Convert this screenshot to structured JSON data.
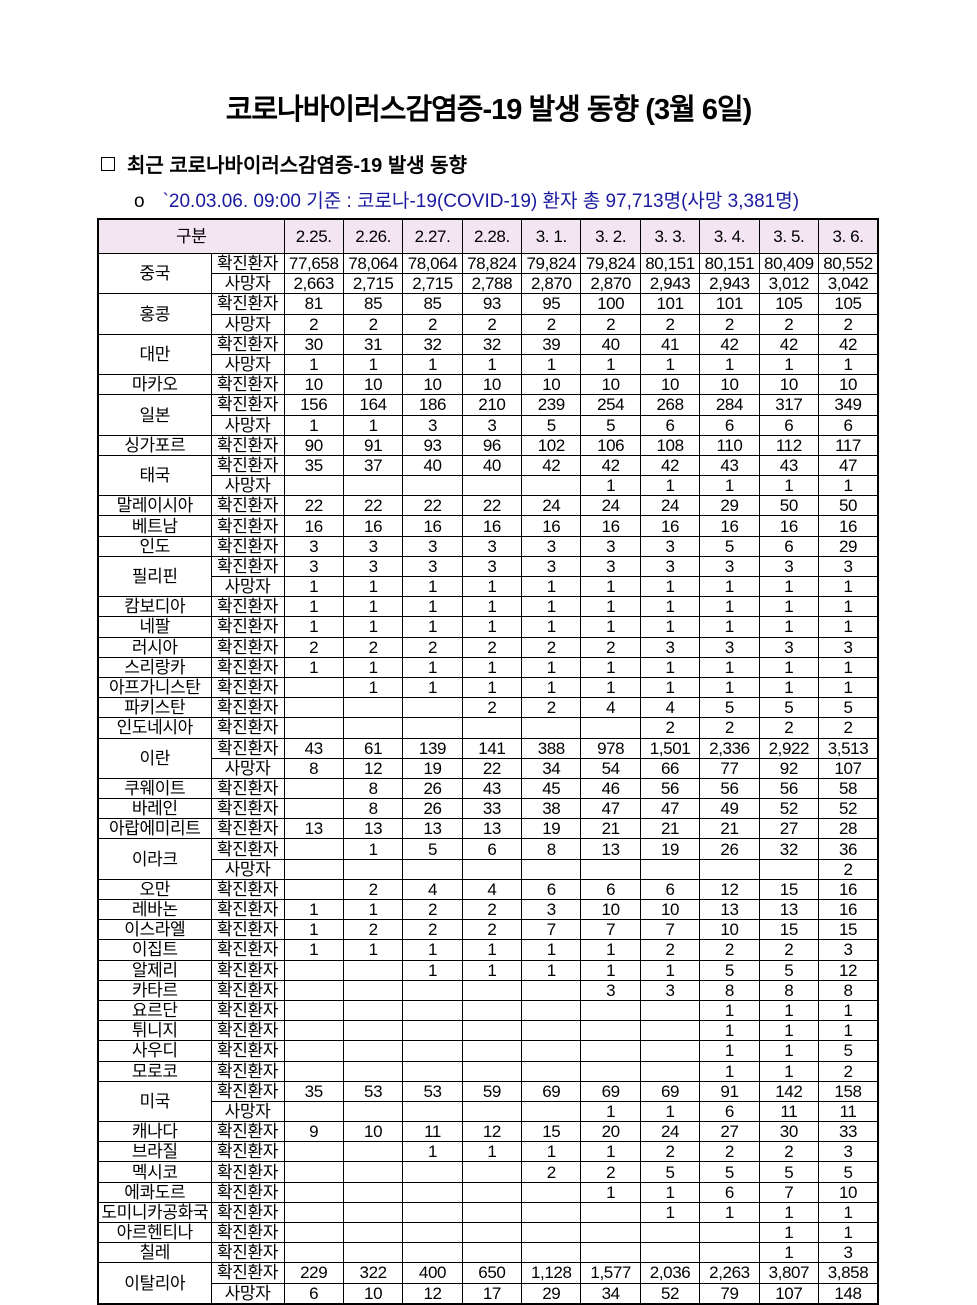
{
  "title": "코로나바이러스감염증-19 발생 동향 (3월 6일)",
  "section_heading": "최근 코로나바이러스감염증-19 발생 동향",
  "basis_bullet": "o",
  "basis_text": "`20.03.06. 09:00 기준 : 코로나-19(COVID-19) 환자  총 97,713명(사망 3,381명)",
  "table": {
    "header_label": "구분",
    "dates": [
      "2.25.",
      "2.26.",
      "2.27.",
      "2.28.",
      "3. 1.",
      "3. 2.",
      "3. 3.",
      "3. 4.",
      "3. 5.",
      "3. 6."
    ],
    "countries": [
      {
        "name": "중국",
        "rows": [
          {
            "type": "확진환자",
            "values": [
              "77,658",
              "78,064",
              "78,064",
              "78,824",
              "79,824",
              "79,824",
              "80,151",
              "80,151",
              "80,409",
              "80,552"
            ]
          },
          {
            "type": "사망자",
            "values": [
              "2,663",
              "2,715",
              "2,715",
              "2,788",
              "2,870",
              "2,870",
              "2,943",
              "2,943",
              "3,012",
              "3,042"
            ]
          }
        ]
      },
      {
        "name": "홍콩",
        "rows": [
          {
            "type": "확진환자",
            "values": [
              "81",
              "85",
              "85",
              "93",
              "95",
              "100",
              "101",
              "101",
              "105",
              "105"
            ]
          },
          {
            "type": "사망자",
            "values": [
              "2",
              "2",
              "2",
              "2",
              "2",
              "2",
              "2",
              "2",
              "2",
              "2"
            ]
          }
        ]
      },
      {
        "name": "대만",
        "rows": [
          {
            "type": "확진환자",
            "values": [
              "30",
              "31",
              "32",
              "32",
              "39",
              "40",
              "41",
              "42",
              "42",
              "42"
            ]
          },
          {
            "type": "사망자",
            "values": [
              "1",
              "1",
              "1",
              "1",
              "1",
              "1",
              "1",
              "1",
              "1",
              "1"
            ]
          }
        ]
      },
      {
        "name": "마카오",
        "rows": [
          {
            "type": "확진환자",
            "values": [
              "10",
              "10",
              "10",
              "10",
              "10",
              "10",
              "10",
              "10",
              "10",
              "10"
            ]
          }
        ]
      },
      {
        "name": "일본",
        "rows": [
          {
            "type": "확진환자",
            "values": [
              "156",
              "164",
              "186",
              "210",
              "239",
              "254",
              "268",
              "284",
              "317",
              "349"
            ]
          },
          {
            "type": "사망자",
            "values": [
              "1",
              "1",
              "3",
              "3",
              "5",
              "5",
              "6",
              "6",
              "6",
              "6"
            ]
          }
        ]
      },
      {
        "name": "싱가포르",
        "rows": [
          {
            "type": "확진환자",
            "values": [
              "90",
              "91",
              "93",
              "96",
              "102",
              "106",
              "108",
              "110",
              "112",
              "117"
            ]
          }
        ]
      },
      {
        "name": "태국",
        "rows": [
          {
            "type": "확진환자",
            "values": [
              "35",
              "37",
              "40",
              "40",
              "42",
              "42",
              "42",
              "43",
              "43",
              "47"
            ]
          },
          {
            "type": "사망자",
            "values": [
              "",
              "",
              "",
              "",
              "",
              "1",
              "1",
              "1",
              "1",
              "1"
            ]
          }
        ]
      },
      {
        "name": "말레이시아",
        "rows": [
          {
            "type": "확진환자",
            "values": [
              "22",
              "22",
              "22",
              "22",
              "24",
              "24",
              "24",
              "29",
              "50",
              "50"
            ]
          }
        ]
      },
      {
        "name": "베트남",
        "rows": [
          {
            "type": "확진환자",
            "values": [
              "16",
              "16",
              "16",
              "16",
              "16",
              "16",
              "16",
              "16",
              "16",
              "16"
            ]
          }
        ]
      },
      {
        "name": "인도",
        "rows": [
          {
            "type": "확진환자",
            "values": [
              "3",
              "3",
              "3",
              "3",
              "3",
              "3",
              "3",
              "5",
              "6",
              "29"
            ]
          }
        ]
      },
      {
        "name": "필리핀",
        "rows": [
          {
            "type": "확진환자",
            "values": [
              "3",
              "3",
              "3",
              "3",
              "3",
              "3",
              "3",
              "3",
              "3",
              "3"
            ]
          },
          {
            "type": "사망자",
            "values": [
              "1",
              "1",
              "1",
              "1",
              "1",
              "1",
              "1",
              "1",
              "1",
              "1"
            ]
          }
        ]
      },
      {
        "name": "캄보디아",
        "rows": [
          {
            "type": "확진환자",
            "values": [
              "1",
              "1",
              "1",
              "1",
              "1",
              "1",
              "1",
              "1",
              "1",
              "1"
            ]
          }
        ]
      },
      {
        "name": "네팔",
        "rows": [
          {
            "type": "확진환자",
            "values": [
              "1",
              "1",
              "1",
              "1",
              "1",
              "1",
              "1",
              "1",
              "1",
              "1"
            ]
          }
        ]
      },
      {
        "name": "러시아",
        "rows": [
          {
            "type": "확진환자",
            "values": [
              "2",
              "2",
              "2",
              "2",
              "2",
              "2",
              "3",
              "3",
              "3",
              "3"
            ]
          }
        ]
      },
      {
        "name": "스리랑카",
        "rows": [
          {
            "type": "확진환자",
            "values": [
              "1",
              "1",
              "1",
              "1",
              "1",
              "1",
              "1",
              "1",
              "1",
              "1"
            ]
          }
        ]
      },
      {
        "name": "아프가니스탄",
        "rows": [
          {
            "type": "확진환자",
            "values": [
              "",
              "1",
              "1",
              "1",
              "1",
              "1",
              "1",
              "1",
              "1",
              "1"
            ]
          }
        ]
      },
      {
        "name": "파키스탄",
        "rows": [
          {
            "type": "확진환자",
            "values": [
              "",
              "",
              "",
              "2",
              "2",
              "4",
              "4",
              "5",
              "5",
              "5"
            ]
          }
        ]
      },
      {
        "name": "인도네시아",
        "rows": [
          {
            "type": "확진환자",
            "values": [
              "",
              "",
              "",
              "",
              "",
              "",
              "2",
              "2",
              "2",
              "2"
            ]
          }
        ]
      },
      {
        "name": "이란",
        "rows": [
          {
            "type": "확진환자",
            "values": [
              "43",
              "61",
              "139",
              "141",
              "388",
              "978",
              "1,501",
              "2,336",
              "2,922",
              "3,513"
            ]
          },
          {
            "type": "사망자",
            "values": [
              "8",
              "12",
              "19",
              "22",
              "34",
              "54",
              "66",
              "77",
              "92",
              "107"
            ]
          }
        ]
      },
      {
        "name": "쿠웨이트",
        "rows": [
          {
            "type": "확진환자",
            "values": [
              "",
              "8",
              "26",
              "43",
              "45",
              "46",
              "56",
              "56",
              "56",
              "58"
            ]
          }
        ]
      },
      {
        "name": "바레인",
        "rows": [
          {
            "type": "확진환자",
            "values": [
              "",
              "8",
              "26",
              "33",
              "38",
              "47",
              "47",
              "49",
              "52",
              "52"
            ]
          }
        ]
      },
      {
        "name": "아랍에미리트",
        "rows": [
          {
            "type": "확진환자",
            "values": [
              "13",
              "13",
              "13",
              "13",
              "19",
              "21",
              "21",
              "21",
              "27",
              "28"
            ]
          }
        ]
      },
      {
        "name": "이라크",
        "rows": [
          {
            "type": "확진환자",
            "values": [
              "",
              "1",
              "5",
              "6",
              "8",
              "13",
              "19",
              "26",
              "32",
              "36"
            ]
          },
          {
            "type": "사망자",
            "values": [
              "",
              "",
              "",
              "",
              "",
              "",
              "",
              "",
              "",
              "2"
            ]
          }
        ]
      },
      {
        "name": "오만",
        "rows": [
          {
            "type": "확진환자",
            "values": [
              "",
              "2",
              "4",
              "4",
              "6",
              "6",
              "6",
              "12",
              "15",
              "16"
            ]
          }
        ]
      },
      {
        "name": "레바논",
        "rows": [
          {
            "type": "확진환자",
            "values": [
              "1",
              "1",
              "2",
              "2",
              "3",
              "10",
              "10",
              "13",
              "13",
              "16"
            ]
          }
        ]
      },
      {
        "name": "이스라엘",
        "rows": [
          {
            "type": "확진환자",
            "values": [
              "1",
              "2",
              "2",
              "2",
              "7",
              "7",
              "7",
              "10",
              "15",
              "15"
            ]
          }
        ]
      },
      {
        "name": "이집트",
        "rows": [
          {
            "type": "확진환자",
            "values": [
              "1",
              "1",
              "1",
              "1",
              "1",
              "1",
              "2",
              "2",
              "2",
              "3"
            ]
          }
        ]
      },
      {
        "name": "알제리",
        "rows": [
          {
            "type": "확진환자",
            "values": [
              "",
              "",
              "1",
              "1",
              "1",
              "1",
              "1",
              "5",
              "5",
              "12"
            ]
          }
        ]
      },
      {
        "name": "카타르",
        "rows": [
          {
            "type": "확진환자",
            "values": [
              "",
              "",
              "",
              "",
              "",
              "3",
              "3",
              "8",
              "8",
              "8"
            ]
          }
        ]
      },
      {
        "name": "요르단",
        "rows": [
          {
            "type": "확진환자",
            "values": [
              "",
              "",
              "",
              "",
              "",
              "",
              "",
              "1",
              "1",
              "1"
            ]
          }
        ]
      },
      {
        "name": "튀니지",
        "rows": [
          {
            "type": "확진환자",
            "values": [
              "",
              "",
              "",
              "",
              "",
              "",
              "",
              "1",
              "1",
              "1"
            ]
          }
        ]
      },
      {
        "name": "사우디",
        "rows": [
          {
            "type": "확진환자",
            "values": [
              "",
              "",
              "",
              "",
              "",
              "",
              "",
              "1",
              "1",
              "5"
            ]
          }
        ]
      },
      {
        "name": "모로코",
        "rows": [
          {
            "type": "확진환자",
            "values": [
              "",
              "",
              "",
              "",
              "",
              "",
              "",
              "1",
              "1",
              "2"
            ]
          }
        ]
      },
      {
        "name": "미국",
        "rows": [
          {
            "type": "확진환자",
            "values": [
              "35",
              "53",
              "53",
              "59",
              "69",
              "69",
              "69",
              "91",
              "142",
              "158"
            ]
          },
          {
            "type": "사망자",
            "values": [
              "",
              "",
              "",
              "",
              "",
              "1",
              "1",
              "6",
              "11",
              "11"
            ]
          }
        ]
      },
      {
        "name": "캐나다",
        "rows": [
          {
            "type": "확진환자",
            "values": [
              "9",
              "10",
              "11",
              "12",
              "15",
              "20",
              "24",
              "27",
              "30",
              "33"
            ]
          }
        ]
      },
      {
        "name": "브라질",
        "rows": [
          {
            "type": "확진환자",
            "values": [
              "",
              "",
              "1",
              "1",
              "1",
              "1",
              "2",
              "2",
              "2",
              "3"
            ]
          }
        ]
      },
      {
        "name": "멕시코",
        "rows": [
          {
            "type": "확진환자",
            "values": [
              "",
              "",
              "",
              "",
              "2",
              "2",
              "5",
              "5",
              "5",
              "5"
            ]
          }
        ]
      },
      {
        "name": "에콰도르",
        "rows": [
          {
            "type": "확진환자",
            "values": [
              "",
              "",
              "",
              "",
              "",
              "1",
              "1",
              "6",
              "7",
              "10"
            ]
          }
        ]
      },
      {
        "name": "도미니카공화국",
        "rows": [
          {
            "type": "확진환자",
            "values": [
              "",
              "",
              "",
              "",
              "",
              "",
              "1",
              "1",
              "1",
              "1"
            ]
          }
        ]
      },
      {
        "name": "아르헨티나",
        "rows": [
          {
            "type": "확진환자",
            "values": [
              "",
              "",
              "",
              "",
              "",
              "",
              "",
              "",
              "1",
              "1"
            ]
          }
        ]
      },
      {
        "name": "칠레",
        "rows": [
          {
            "type": "확진환자",
            "values": [
              "",
              "",
              "",
              "",
              "",
              "",
              "",
              "",
              "1",
              "3"
            ]
          }
        ]
      },
      {
        "name": "이탈리아",
        "rows": [
          {
            "type": "확진환자",
            "values": [
              "229",
              "322",
              "400",
              "650",
              "1,128",
              "1,577",
              "2,036",
              "2,263",
              "3,807",
              "3,858"
            ]
          },
          {
            "type": "사망자",
            "values": [
              "6",
              "10",
              "12",
              "17",
              "29",
              "34",
              "52",
              "79",
              "107",
              "148"
            ]
          }
        ]
      }
    ]
  }
}
